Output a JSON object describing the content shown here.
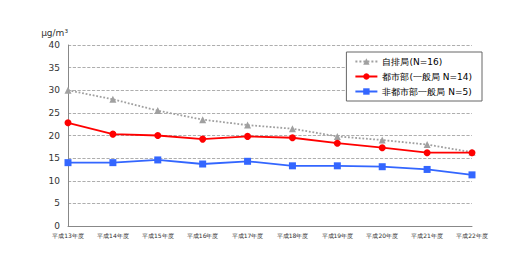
{
  "chart_data": {
    "type": "line",
    "y_label": "μg/m³",
    "categories": [
      "平成13年度",
      "平成14年度",
      "平成15年度",
      "平成16年度",
      "平成17年度",
      "平成18年度",
      "平成19年度",
      "平成20年度",
      "平成21年度",
      "平成22年度"
    ],
    "series": [
      {
        "name": "自排局(N=16)",
        "color": "#a0a0a0",
        "marker": "triangle",
        "line_style": "dotted",
        "values": [
          30,
          28,
          25.5,
          23.5,
          22.3,
          21.5,
          19.8,
          19,
          18,
          16.3
        ]
      },
      {
        "name": "都市部(一般局 N=14)",
        "color": "#ff0000",
        "marker": "circle",
        "line_style": "solid",
        "values": [
          22.8,
          20.3,
          20,
          19.2,
          19.8,
          19.5,
          18.3,
          17.3,
          16.2,
          16.2
        ]
      },
      {
        "name": "非都市部一般局 N=5)",
        "color": "#3366ff",
        "marker": "square",
        "line_style": "solid",
        "values": [
          14,
          14,
          14.6,
          13.7,
          14.3,
          13.3,
          13.3,
          13.1,
          12.5,
          11.3
        ]
      }
    ],
    "ylim": [
      0,
      40
    ],
    "yticks": [
      0,
      5,
      10,
      15,
      20,
      25,
      30,
      35,
      40
    ],
    "grid": true,
    "legend": "top-right"
  }
}
